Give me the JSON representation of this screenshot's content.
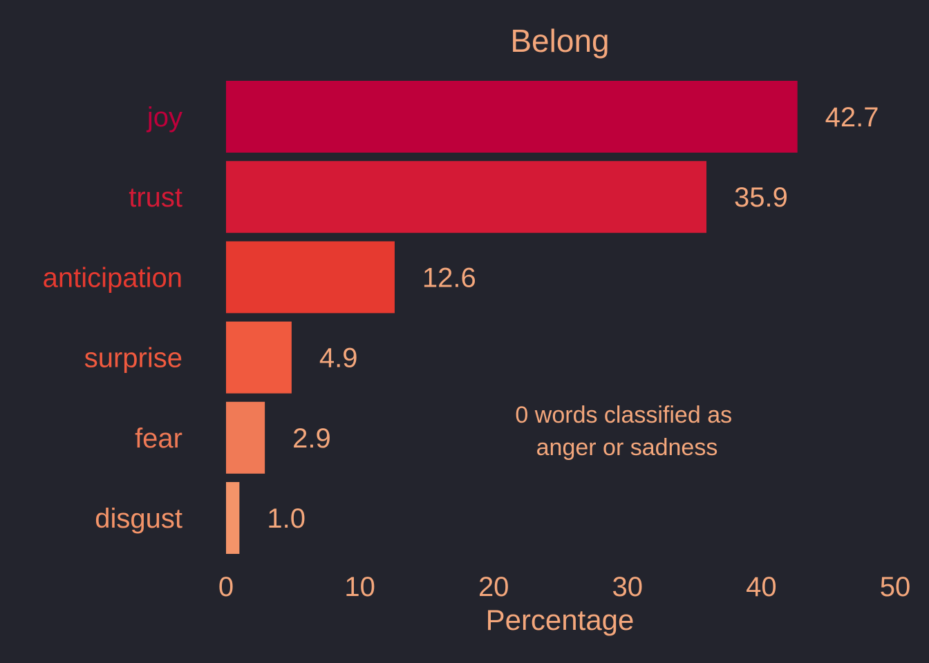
{
  "chart_data": {
    "type": "bar",
    "orientation": "horizontal",
    "title": "Belong",
    "xlabel": "Percentage",
    "ylabel": "",
    "categories": [
      "joy",
      "trust",
      "anticipation",
      "surprise",
      "fear",
      "disgust"
    ],
    "values": [
      42.7,
      35.9,
      12.6,
      4.9,
      2.9,
      1.0
    ],
    "value_labels": [
      "42.7",
      "35.9",
      "12.6",
      "4.9",
      "2.9",
      "1.0"
    ],
    "colors": [
      "#be003b",
      "#d41a36",
      "#e63a30",
      "#f05a3f",
      "#f07a56",
      "#f49469"
    ],
    "xlim": [
      0,
      50
    ],
    "xticks": [
      0,
      10,
      20,
      30,
      40,
      50
    ],
    "grid": false,
    "legend": "none",
    "annotation": [
      "0 words classified as",
      "anger or sadness"
    ]
  },
  "theme": {
    "background": "#23242d",
    "text_color": "#f4a77c"
  }
}
